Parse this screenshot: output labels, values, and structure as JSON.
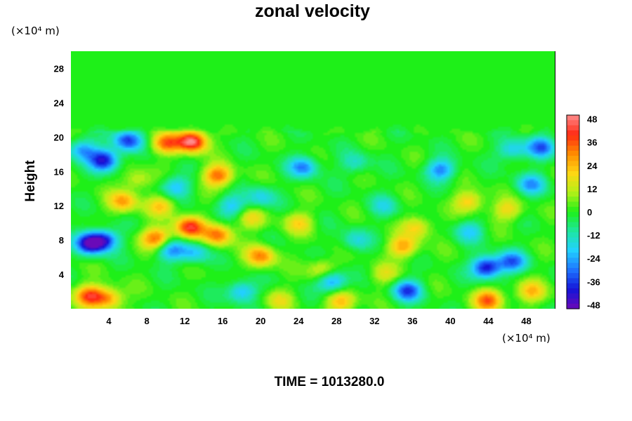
{
  "chart_data": {
    "type": "heatmap",
    "title": "zonal velocity",
    "ylabel": "Height",
    "xlabel": "",
    "x_unit": "(×10⁴ m)",
    "y_unit": "(×10⁴ m)",
    "xlim": [
      0,
      51
    ],
    "ylim": [
      0,
      30
    ],
    "x_ticks": [
      "4",
      "8",
      "12",
      "16",
      "20",
      "24",
      "28",
      "32",
      "36",
      "40",
      "44",
      "48"
    ],
    "y_ticks": [
      "4",
      "8",
      "12",
      "16",
      "20",
      "24",
      "28"
    ],
    "x_tick_values": [
      4,
      8,
      12,
      16,
      20,
      24,
      28,
      32,
      36,
      40,
      44,
      48
    ],
    "y_tick_values": [
      4,
      8,
      12,
      16,
      20,
      24,
      28
    ],
    "colorbar": {
      "range": [
        -50,
        50
      ],
      "ticks": [
        "48",
        "36",
        "24",
        "12",
        "0",
        "-12",
        "-24",
        "-36",
        "-48"
      ],
      "tick_values": [
        48,
        36,
        24,
        12,
        0,
        -12,
        -24,
        -36,
        -48
      ],
      "colors": [
        "#6a0ab8",
        "#1414d8",
        "#1e74ff",
        "#22d0ff",
        "#1ee6a0",
        "#1ef018",
        "#b4f018",
        "#ffd614",
        "#ff8c00",
        "#ff2a14",
        "#ff8c8c"
      ]
    },
    "background_value": 0,
    "features": [
      {
        "x": 2,
        "y": 7.6,
        "value": -44
      },
      {
        "x": 3.5,
        "y": 8,
        "value": -34
      },
      {
        "x": 2,
        "y": 1.5,
        "value": 36
      },
      {
        "x": 4,
        "y": 1.2,
        "value": 26
      },
      {
        "x": 12.8,
        "y": 19.5,
        "value": 50
      },
      {
        "x": 10,
        "y": 19.3,
        "value": 32
      },
      {
        "x": 6,
        "y": 19.6,
        "value": -36
      },
      {
        "x": 3.5,
        "y": 17.3,
        "value": -42
      },
      {
        "x": 1.2,
        "y": 18.5,
        "value": -26
      },
      {
        "x": 15.5,
        "y": 15.5,
        "value": 34
      },
      {
        "x": 11,
        "y": 14.2,
        "value": -22
      },
      {
        "x": 5.5,
        "y": 12.5,
        "value": 26
      },
      {
        "x": 9.5,
        "y": 12,
        "value": 20
      },
      {
        "x": 12.5,
        "y": 9.5,
        "value": 40
      },
      {
        "x": 9,
        "y": 8.2,
        "value": 34
      },
      {
        "x": 15.5,
        "y": 8.6,
        "value": 32
      },
      {
        "x": 10.5,
        "y": 6.8,
        "value": -26
      },
      {
        "x": 13,
        "y": 6.5,
        "value": -20
      },
      {
        "x": 20,
        "y": 6.1,
        "value": 30
      },
      {
        "x": 19,
        "y": 10.5,
        "value": 16
      },
      {
        "x": 17,
        "y": 12,
        "value": -20
      },
      {
        "x": 20,
        "y": 13,
        "value": -18
      },
      {
        "x": 24.5,
        "y": 16.5,
        "value": -28
      },
      {
        "x": 24,
        "y": 10,
        "value": 18
      },
      {
        "x": 26.5,
        "y": 4.5,
        "value": 18
      },
      {
        "x": 27.5,
        "y": 3.2,
        "value": -30
      },
      {
        "x": 28.5,
        "y": 0.8,
        "value": 24
      },
      {
        "x": 18,
        "y": 2,
        "value": -24
      },
      {
        "x": 30,
        "y": 17,
        "value": -14
      },
      {
        "x": 33,
        "y": 12,
        "value": -14
      },
      {
        "x": 35,
        "y": 7.2,
        "value": 26
      },
      {
        "x": 36.5,
        "y": 9.5,
        "value": 20
      },
      {
        "x": 35.5,
        "y": 2.1,
        "value": -34
      },
      {
        "x": 33,
        "y": 4,
        "value": 14
      },
      {
        "x": 39,
        "y": 16.2,
        "value": -28
      },
      {
        "x": 42,
        "y": 12.5,
        "value": 22
      },
      {
        "x": 46,
        "y": 11.5,
        "value": 18
      },
      {
        "x": 43.8,
        "y": 4.8,
        "value": -44
      },
      {
        "x": 46.5,
        "y": 5.5,
        "value": -30
      },
      {
        "x": 44,
        "y": 1,
        "value": 34
      },
      {
        "x": 48.5,
        "y": 2,
        "value": 22
      },
      {
        "x": 49.5,
        "y": 18.8,
        "value": -30
      },
      {
        "x": 46.5,
        "y": 18.5,
        "value": -20
      },
      {
        "x": 48.5,
        "y": 14.5,
        "value": -24
      },
      {
        "x": 42,
        "y": 9,
        "value": -18
      },
      {
        "x": 22,
        "y": 1,
        "value": 14
      },
      {
        "x": 7,
        "y": 15,
        "value": 14
      },
      {
        "x": 30,
        "y": 8,
        "value": -16
      }
    ]
  },
  "footer": {
    "time_label": "TIME = 1013280.0"
  }
}
